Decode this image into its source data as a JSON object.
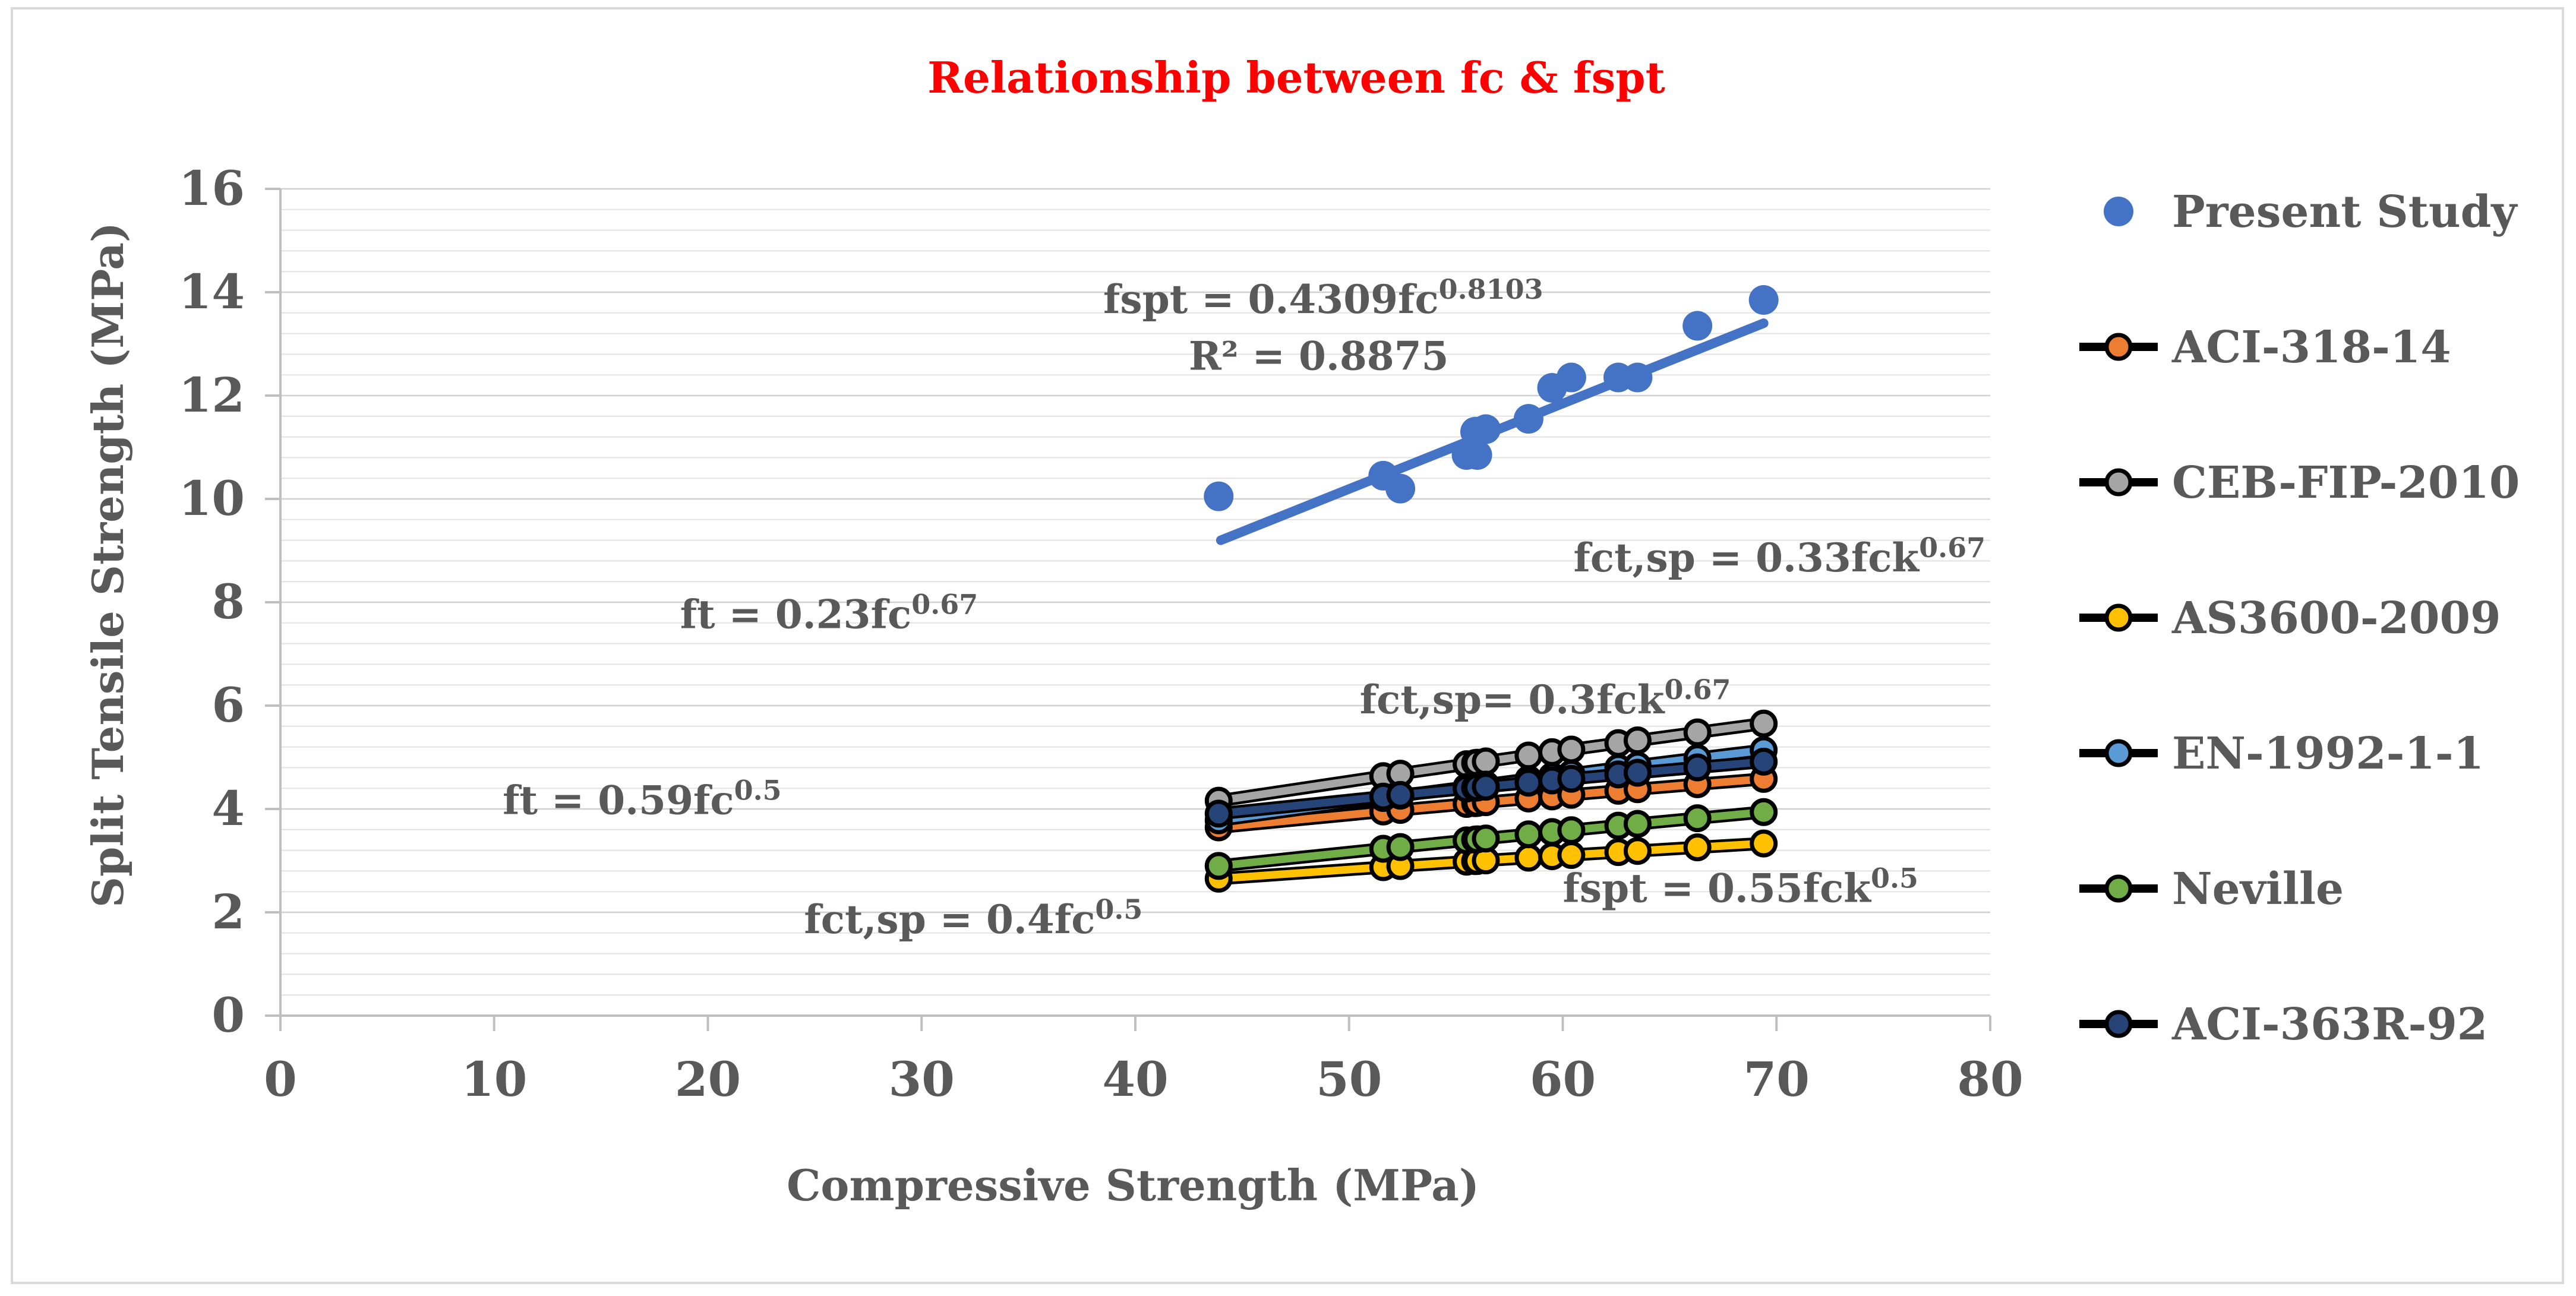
{
  "chart_data": {
    "type": "scatter",
    "title": "Relationship between fc & fspt",
    "title_color": "#ff0000",
    "xlabel": "Compressive Strength (MPa)",
    "ylabel": "Split Tensile Strength (MPa)",
    "xlim": [
      0,
      80
    ],
    "ylim": [
      0,
      16
    ],
    "x_ticks": [
      "0",
      "10",
      "20",
      "30",
      "40",
      "50",
      "60",
      "70",
      "80"
    ],
    "y_ticks": [
      "0",
      "2",
      "4",
      "6",
      "8",
      "10",
      "12",
      "14",
      "16"
    ],
    "grid": "horizontal-minor",
    "legend_position": "right",
    "x_values": [
      43.9,
      51.6,
      52.4,
      55.5,
      55.9,
      56.0,
      56.4,
      58.4,
      59.5,
      60.4,
      62.6,
      63.5,
      66.3,
      69.4
    ],
    "present_study": {
      "name": "Present Study",
      "color": "#4472c4",
      "y": [
        10.05,
        10.45,
        10.2,
        10.85,
        11.3,
        10.85,
        11.35,
        11.55,
        12.15,
        12.35,
        12.35,
        12.35,
        13.35,
        13.85
      ],
      "trendline": {
        "x": [
          44,
          69.4
        ],
        "y": [
          9.2,
          13.4
        ]
      }
    },
    "series": [
      {
        "name": "ACI-318-14",
        "color": "#ed7d31",
        "coef": 0.55,
        "exp": 0.5
      },
      {
        "name": "CEB-FIP-2010",
        "color": "#a5a5a5",
        "coef": 0.33,
        "exp": 0.67
      },
      {
        "name": "AS3600-2009",
        "color": "#ffc000",
        "coef": 0.4,
        "exp": 0.5
      },
      {
        "name": "EN-1992-1-1",
        "color": "#5b9bd5",
        "coef": 0.3,
        "exp": 0.67
      },
      {
        "name": "Neville",
        "color": "#70ad47",
        "coef": 0.23,
        "exp": 0.67
      },
      {
        "name": "ACI-363R-92",
        "color": "#264478",
        "coef": 0.59,
        "exp": 0.5
      }
    ],
    "annotations": [
      {
        "base": "fspt = 0.4309fc",
        "sup": "0.8103",
        "x": 38.5,
        "y": 13.6
      },
      {
        "base": "R² = 0.8875",
        "sup": "",
        "x": 42.5,
        "y": 12.5
      },
      {
        "base": "fct,sp = 0.33fck",
        "sup": "0.67",
        "x": 60.5,
        "y": 8.6
      },
      {
        "base": "ft = 0.23fc",
        "sup": "0.67",
        "x": 18.7,
        "y": 7.5
      },
      {
        "base": "fct,sp= 0.3fck",
        "sup": "0.67",
        "x": 50.5,
        "y": 5.85
      },
      {
        "base": "ft = 0.59fc",
        "sup": "0.5",
        "x": 10.4,
        "y": 3.9
      },
      {
        "base": "fct,sp = 0.4fc",
        "sup": "0.5",
        "x": 24.5,
        "y": 1.6
      },
      {
        "base": "fspt = 0.55fck",
        "sup": "0.5",
        "x": 60.0,
        "y": 2.2
      }
    ]
  }
}
